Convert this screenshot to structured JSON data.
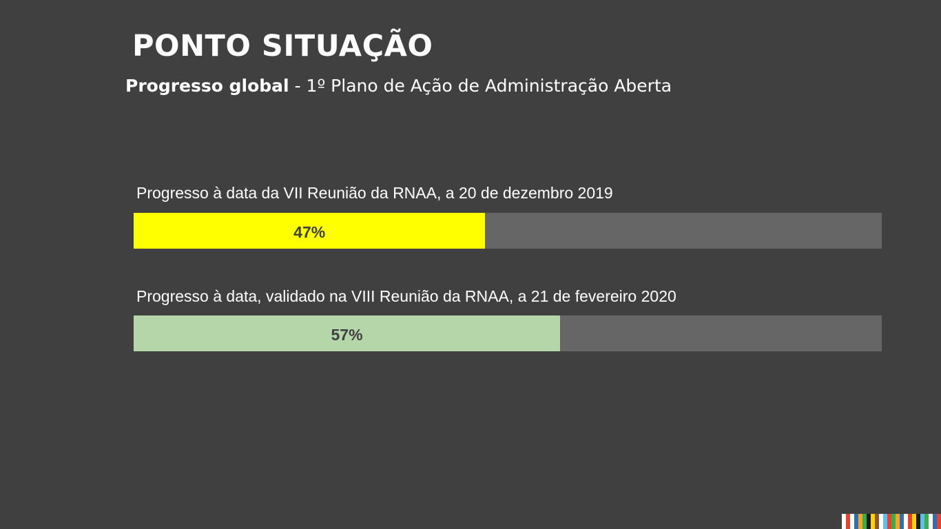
{
  "slide": {
    "title": "PONTO SITUAÇÃO",
    "subtitle_bold": "Progresso global",
    "subtitle_rest": " - 1º Plano de Ação de Administração Aberta"
  },
  "chart_data": {
    "type": "bar",
    "orientation": "horizontal",
    "ylim": [
      0,
      100
    ],
    "categories": [
      "Progresso à data da VII Reunião da RNAA, a 20 de dezembro 2019",
      "Progresso à data, validado na VIII Reunião da RNAA, a 21 de fevereiro 2020"
    ],
    "values": [
      47,
      57
    ],
    "value_labels": [
      "47%",
      "57%"
    ],
    "colors": {
      "fills": [
        "#FFFF00",
        "#B4D6A8"
      ],
      "track": "#666666",
      "background": "#404040",
      "value_text": "#404040"
    }
  },
  "footer": {
    "stripe_colors": [
      "#ffffff",
      "#e8412c",
      "#ffffff",
      "#2f6db5",
      "#f5a623",
      "#3cae49",
      "#1b1b1b",
      "#ffd200",
      "#8b5a2b",
      "#ffffff",
      "#5bc0eb",
      "#e8412c",
      "#3cae49",
      "#f5a623",
      "#2f6db5",
      "#ffffff",
      "#e8412c",
      "#ffd200",
      "#1b1b1b",
      "#5bc0eb",
      "#3cae49",
      "#ffffff",
      "#2f6db5",
      "#e8412c"
    ]
  }
}
